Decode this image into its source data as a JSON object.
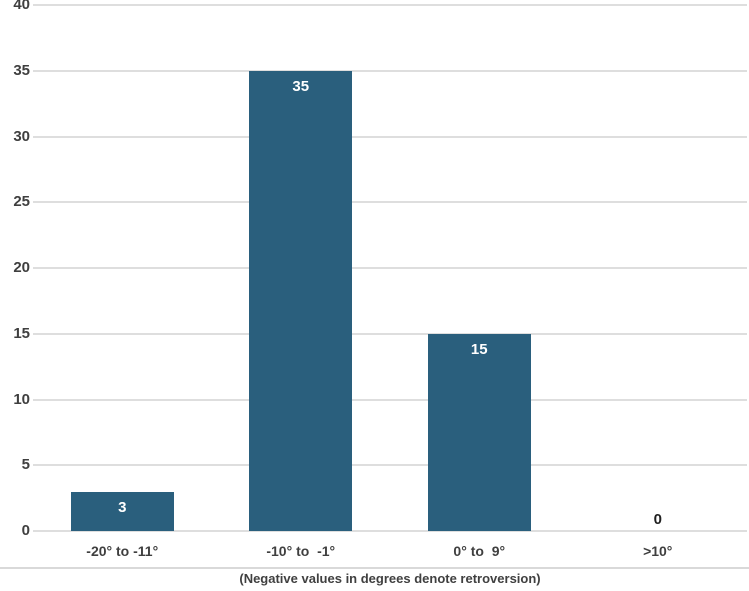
{
  "chart_data": {
    "type": "bar",
    "title": "",
    "categories": [
      "-20° to -11°",
      "-10° to  -1°",
      "0° to  9°",
      ">10°"
    ],
    "values": [
      3,
      35,
      15,
      0
    ],
    "xlabel": "(Negative values in degrees denote retroversion)",
    "ylabel": "",
    "ylim": [
      0,
      40
    ],
    "yticks": [
      0,
      5,
      10,
      15,
      20,
      25,
      30,
      35,
      40
    ],
    "grid": "horizontal",
    "legend": "none",
    "colors": {
      "bar_fill": "#2a5f7d",
      "bar_label": "#ffffff",
      "zero_value_label": "#1f1f1f",
      "gridline": "#dedede",
      "tick_label": "#3f3f3f",
      "caption": "#404040",
      "background": "#ffffff"
    }
  }
}
